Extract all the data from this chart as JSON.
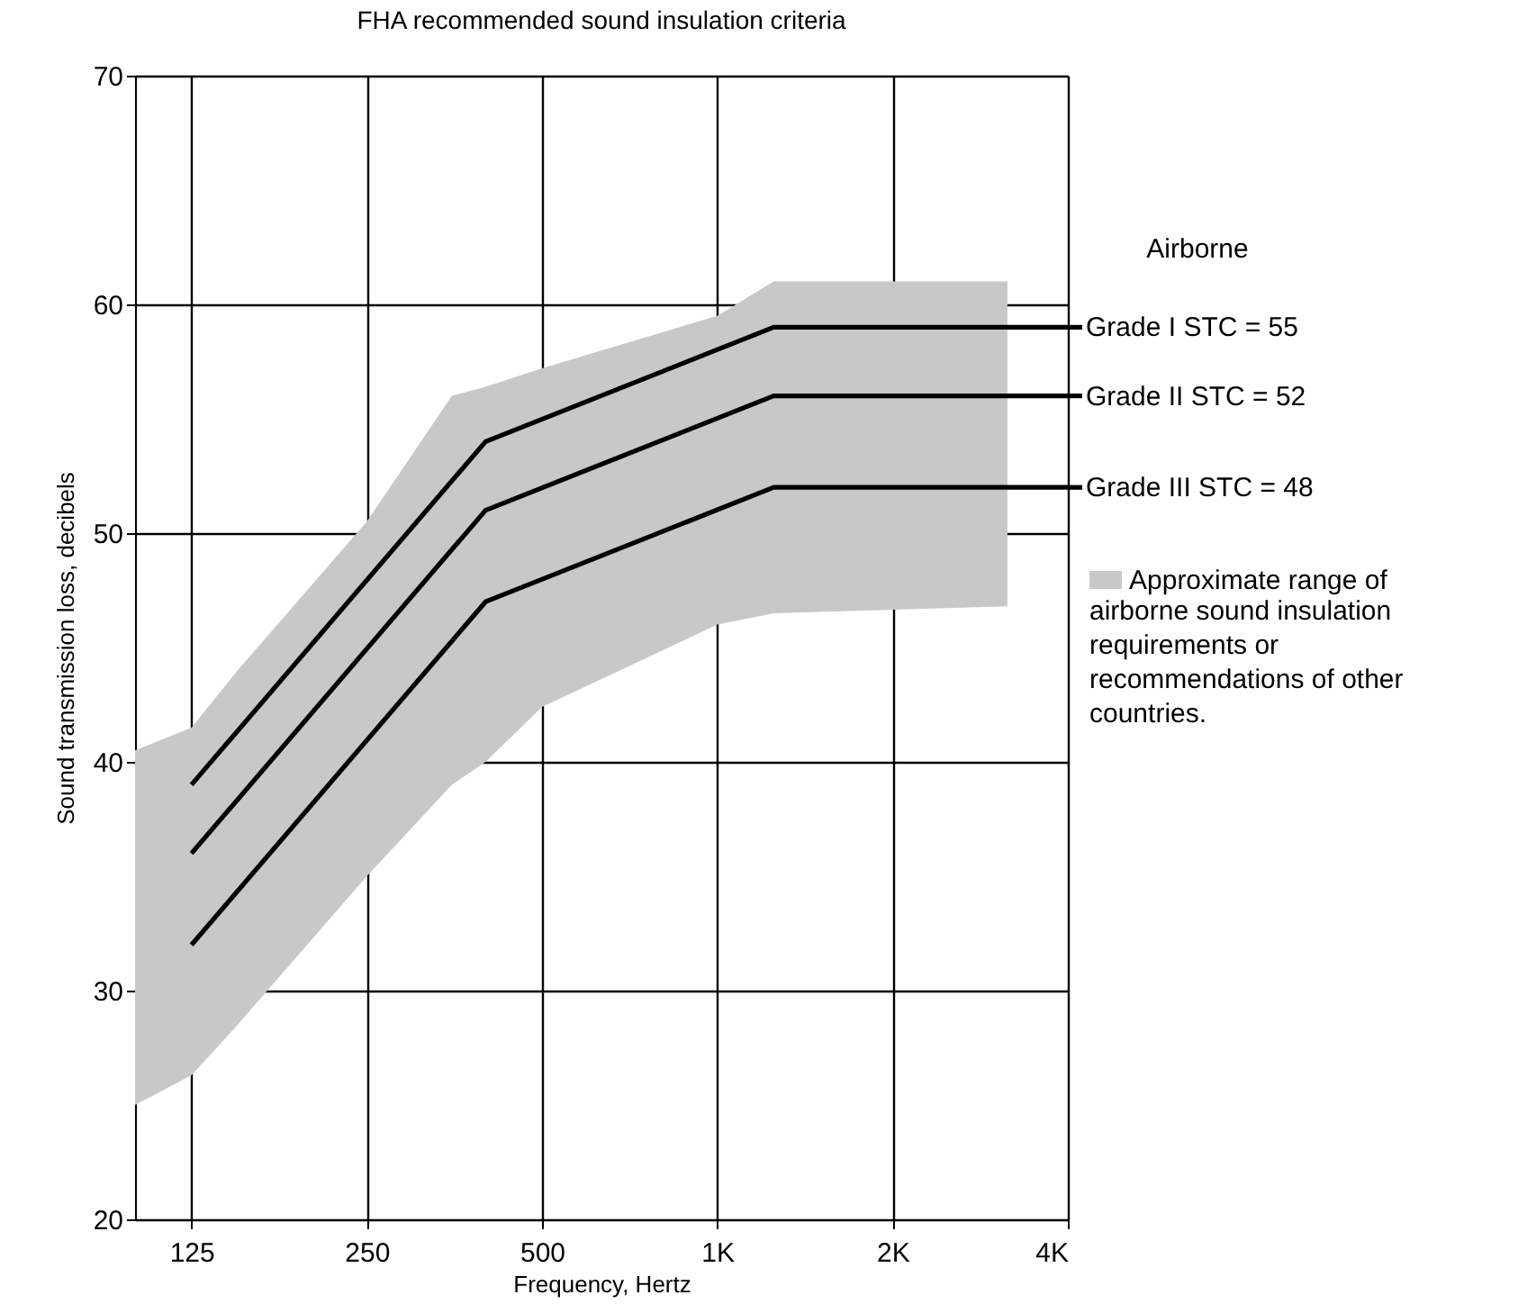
{
  "chart_data": {
    "type": "line",
    "title": "FHA  recommended sound insulation criteria",
    "xlabel": "Frequency, Hertz",
    "ylabel": "Sound transmission loss, decibels",
    "legend_title": "Airborne",
    "log": "x",
    "grid": true,
    "legend": "right",
    "line_style": "solid",
    "marker": "none",
    "xlim": [
      100,
      4000
    ],
    "xticks": [
      125,
      250,
      500,
      {
        "value": 1000,
        "label": "1K"
      },
      {
        "value": 2000,
        "label": "2K"
      },
      {
        "value": 4000,
        "label": "4K"
      }
    ],
    "ylim": [
      20,
      70
    ],
    "yticks": [
      20,
      30,
      40,
      50,
      60,
      70
    ],
    "series": [
      {
        "name": "Approximate range of airborne sound insulation requirements or recommendations of other countries.",
        "color": "#c8c8c8",
        "x": [
          100,
          125,
          150,
          250,
          350,
          400,
          500,
          1000,
          1250,
          3150
        ],
        "values": [
          null,
          null,
          null,
          null,
          null,
          null,
          null,
          null,
          null,
          null
        ],
        "upper": [
          40.5,
          41.5,
          44,
          50.5,
          56,
          56.4,
          57.2,
          59.5,
          61,
          61
        ],
        "lower": [
          25,
          26.3,
          28.5,
          35,
          39,
          40,
          42.4,
          46,
          46.5,
          46.8
        ]
      },
      {
        "name": "Grade I   STC = 55",
        "color": "#000000",
        "x": [
          125,
          400,
          1250,
          4000
        ],
        "values": [
          39,
          54,
          59,
          59
        ]
      },
      {
        "name": "Grade II  STC = 52",
        "color": "#000000",
        "x": [
          125,
          400,
          1250,
          4000
        ],
        "values": [
          36,
          51,
          56,
          56
        ]
      },
      {
        "name": "Grade III STC = 48",
        "color": "#000000",
        "x": [
          125,
          400,
          1250,
          4000
        ],
        "values": [
          32,
          47,
          52,
          52
        ]
      }
    ]
  }
}
